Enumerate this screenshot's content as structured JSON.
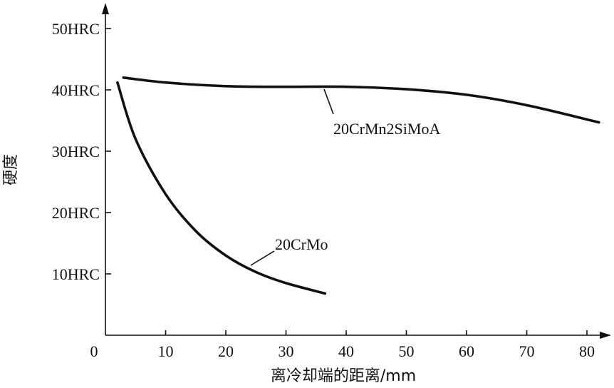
{
  "chart_data": {
    "type": "line",
    "title": "",
    "xlabel": "离冷却端的距离/mm",
    "ylabel": "硬度",
    "x_ticks": [
      0,
      10,
      20,
      30,
      40,
      50,
      60,
      70,
      80
    ],
    "x_tick_labels": [
      "0",
      "10",
      "20",
      "30",
      "40",
      "50",
      "60",
      "70",
      "80"
    ],
    "y_ticks": [
      10,
      20,
      30,
      40,
      50
    ],
    "y_tick_labels": [
      "10HRC",
      "20HRC",
      "30HRC",
      "40HRC",
      "50HRC"
    ],
    "xlim": [
      0,
      84
    ],
    "ylim": [
      0,
      55
    ],
    "grid": false,
    "legend": "none",
    "series": [
      {
        "name": "20CrMn2SiMoA",
        "x": [
          3,
          10,
          20,
          30,
          40,
          50,
          60,
          70,
          82
        ],
        "y": [
          42,
          41.2,
          40.6,
          40.5,
          40.5,
          40.1,
          39.2,
          37.5,
          34.7
        ]
      },
      {
        "name": "20CrMo",
        "x": [
          2,
          5,
          10,
          15,
          20,
          25,
          30,
          36.5
        ],
        "y": [
          41.2,
          32,
          23,
          17,
          13,
          10.3,
          8.5,
          6.8
        ]
      }
    ]
  }
}
